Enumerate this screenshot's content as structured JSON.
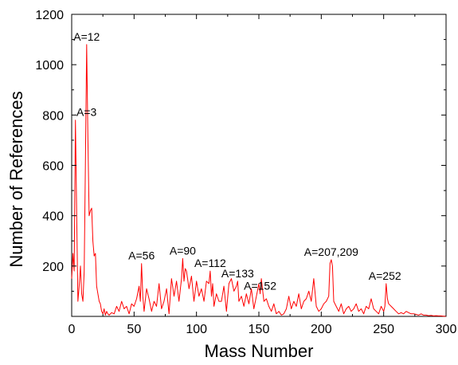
{
  "chart_data": {
    "type": "line",
    "xlabel": "Mass Number",
    "ylabel": "Number of References",
    "xlim": [
      0,
      300
    ],
    "ylim": [
      0,
      1200
    ],
    "x_ticks": [
      0,
      50,
      100,
      150,
      200,
      250,
      300
    ],
    "y_ticks": [
      200,
      400,
      600,
      800,
      1000,
      1200
    ],
    "series_color": "#ff0000",
    "series": [
      {
        "x": [
          0,
          1,
          2,
          3,
          4,
          5,
          6,
          7,
          8,
          9,
          10,
          11,
          12,
          13,
          14,
          15,
          16,
          17,
          18,
          19,
          20,
          21,
          22,
          23,
          24,
          25,
          26,
          27,
          28,
          29,
          30,
          32,
          34,
          36,
          38,
          40,
          42,
          44,
          46,
          48,
          50,
          52,
          54,
          55,
          56,
          57,
          58,
          60,
          62,
          64,
          66,
          68,
          70,
          72,
          74,
          76,
          78,
          80,
          82,
          84,
          86,
          88,
          89,
          90,
          91,
          92,
          94,
          96,
          98,
          100,
          102,
          104,
          106,
          108,
          110,
          111,
          112,
          113,
          114,
          116,
          118,
          120,
          122,
          124,
          126,
          128,
          130,
          132,
          133,
          134,
          136,
          138,
          140,
          142,
          144,
          146,
          148,
          150,
          151,
          152,
          154,
          156,
          158,
          160,
          162,
          164,
          166,
          168,
          170,
          172,
          174,
          176,
          178,
          180,
          182,
          184,
          186,
          188,
          190,
          192,
          194,
          196,
          198,
          200,
          202,
          204,
          206,
          207,
          208,
          209,
          210,
          212,
          214,
          216,
          218,
          220,
          222,
          224,
          226,
          228,
          230,
          232,
          234,
          236,
          238,
          240,
          242,
          244,
          246,
          248,
          250,
          251,
          252,
          253,
          254,
          256,
          258,
          260,
          262,
          264,
          266,
          268,
          270,
          272,
          274,
          276,
          278,
          280,
          282,
          284,
          286,
          288,
          290,
          292,
          294,
          296,
          298,
          300
        ],
        "y": [
          150,
          250,
          180,
          780,
          400,
          60,
          120,
          200,
          90,
          60,
          180,
          600,
          1080,
          700,
          400,
          420,
          430,
          300,
          240,
          250,
          120,
          90,
          60,
          50,
          20,
          10,
          30,
          5,
          20,
          10,
          5,
          15,
          10,
          40,
          20,
          60,
          30,
          40,
          10,
          50,
          40,
          70,
          120,
          60,
          210,
          80,
          20,
          110,
          70,
          20,
          60,
          40,
          130,
          30,
          60,
          110,
          10,
          150,
          80,
          140,
          60,
          150,
          230,
          140,
          190,
          180,
          110,
          160,
          60,
          140,
          80,
          110,
          60,
          140,
          130,
          180,
          80,
          130,
          40,
          90,
          60,
          60,
          120,
          20,
          130,
          150,
          100,
          120,
          140,
          60,
          80,
          40,
          90,
          50,
          110,
          30,
          80,
          130,
          90,
          150,
          60,
          70,
          40,
          20,
          50,
          10,
          20,
          5,
          10,
          30,
          80,
          30,
          60,
          40,
          90,
          30,
          60,
          70,
          100,
          60,
          150,
          40,
          20,
          30,
          50,
          60,
          80,
          210,
          225,
          200,
          60,
          40,
          20,
          50,
          10,
          30,
          40,
          20,
          30,
          50,
          20,
          30,
          10,
          40,
          30,
          70,
          30,
          20,
          10,
          40,
          20,
          40,
          130,
          70,
          50,
          40,
          30,
          20,
          10,
          15,
          10,
          20,
          15,
          10,
          10,
          8,
          5,
          10,
          5,
          5,
          3,
          4,
          2,
          3,
          2,
          2,
          1,
          1
        ]
      }
    ],
    "annotations": [
      {
        "text": "A=12",
        "x": 12,
        "y": 1080
      },
      {
        "text": "A=3",
        "x": 3,
        "y": 780
      },
      {
        "text": "A=56",
        "x": 56,
        "y": 210
      },
      {
        "text": "A=90",
        "x": 89,
        "y": 230
      },
      {
        "text": "A=112",
        "x": 111,
        "y": 180
      },
      {
        "text": "A=133",
        "x": 133,
        "y": 140
      },
      {
        "text": "A=152",
        "x": 151,
        "y": 90
      },
      {
        "text": "A=207,209",
        "x": 208,
        "y": 225
      },
      {
        "text": "A=252",
        "x": 251,
        "y": 130
      }
    ]
  }
}
